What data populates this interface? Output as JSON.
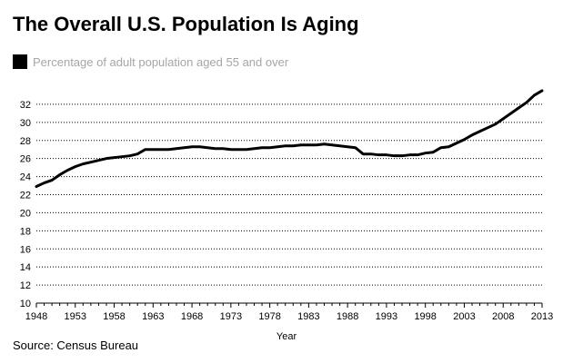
{
  "chart_data": {
    "type": "line",
    "title": "The Overall U.S. Population Is Aging",
    "xlabel": "Year",
    "ylabel": "",
    "source": "Source: Census Bureau",
    "legend": {
      "placement": "top-left",
      "label": "Percentage of adult population aged 55 and over",
      "color": "#000000"
    },
    "xlim": [
      1948,
      2013
    ],
    "ylim": [
      10,
      34
    ],
    "x_ticks": [
      1948,
      1953,
      1958,
      1963,
      1968,
      1973,
      1978,
      1983,
      1988,
      1993,
      1998,
      2003,
      2008,
      2013
    ],
    "y_ticks": [
      10,
      12,
      14,
      16,
      18,
      20,
      22,
      24,
      26,
      28,
      30,
      32
    ],
    "grid": {
      "horizontal": true,
      "style": "dotted"
    },
    "series": [
      {
        "name": "Percentage of adult population aged 55 and over",
        "color": "#000000",
        "x": [
          1948,
          1949,
          1950,
          1951,
          1952,
          1953,
          1954,
          1955,
          1956,
          1957,
          1958,
          1959,
          1960,
          1961,
          1962,
          1963,
          1964,
          1965,
          1966,
          1967,
          1968,
          1969,
          1970,
          1971,
          1972,
          1973,
          1974,
          1975,
          1976,
          1977,
          1978,
          1979,
          1980,
          1981,
          1982,
          1983,
          1984,
          1985,
          1986,
          1987,
          1988,
          1989,
          1990,
          1991,
          1992,
          1993,
          1994,
          1995,
          1996,
          1997,
          1998,
          1999,
          2000,
          2001,
          2002,
          2003,
          2004,
          2005,
          2006,
          2007,
          2008,
          2009,
          2010,
          2011,
          2012,
          2013
        ],
        "values": [
          22.9,
          23.3,
          23.6,
          24.2,
          24.7,
          25.1,
          25.4,
          25.6,
          25.8,
          26.0,
          26.1,
          26.2,
          26.3,
          26.5,
          27.0,
          27.0,
          27.0,
          27.0,
          27.1,
          27.2,
          27.3,
          27.3,
          27.2,
          27.1,
          27.1,
          27.0,
          27.0,
          27.0,
          27.1,
          27.2,
          27.2,
          27.3,
          27.4,
          27.4,
          27.5,
          27.5,
          27.5,
          27.6,
          27.5,
          27.4,
          27.3,
          27.2,
          26.5,
          26.5,
          26.4,
          26.4,
          26.3,
          26.3,
          26.4,
          26.4,
          26.6,
          26.7,
          27.2,
          27.3,
          27.7,
          28.1,
          28.6,
          29.0,
          29.4,
          29.8,
          30.4,
          31.0,
          31.6,
          32.2,
          33.0,
          33.5
        ]
      }
    ]
  }
}
